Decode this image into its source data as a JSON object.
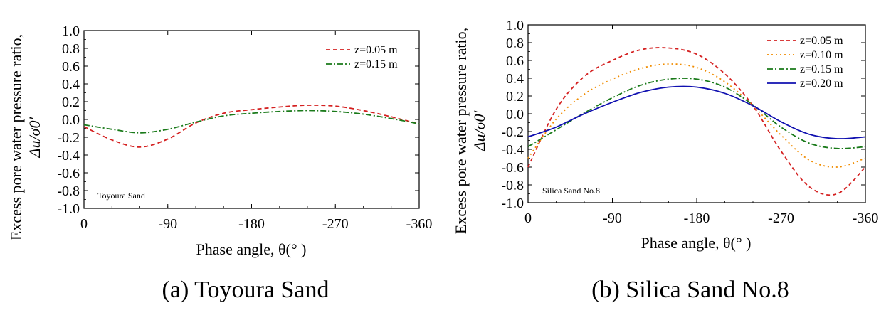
{
  "chart_data": [
    {
      "type": "line",
      "caption": "(a) Toyoura Sand",
      "inset_label": "Toyoura Sand",
      "xlabel": "Phase angle, θ(°  )",
      "ylabel_line1": "Excess pore water pressure ratio,",
      "ylabel_line2": "Δu/σ0′",
      "xlim": [
        0,
        -360
      ],
      "ylim": [
        -1.0,
        1.0
      ],
      "x_ticks": [
        "0",
        "-90",
        "-180",
        "-270",
        "-360"
      ],
      "y_ticks": [
        "1.0",
        "0.8",
        "0.6",
        "0.4",
        "0.2",
        "0.0",
        "-0.2",
        "-0.4",
        "-0.6",
        "-0.8",
        "-1.0"
      ],
      "legend_position": "top-right",
      "grid": false,
      "x": [
        0,
        -30,
        -60,
        -90,
        -120,
        -150,
        -180,
        -210,
        -240,
        -270,
        -300,
        -330,
        -360
      ],
      "series": [
        {
          "name": "z=0.05 m",
          "color": "#d42020",
          "dash": "6,4",
          "values": [
            -0.08,
            -0.23,
            -0.31,
            -0.22,
            -0.04,
            0.07,
            0.11,
            0.14,
            0.16,
            0.15,
            0.1,
            0.03,
            -0.05
          ]
        },
        {
          "name": "z=0.15 m",
          "color": "#1a7a1a",
          "dash": "8,3,2,3",
          "values": [
            -0.06,
            -0.11,
            -0.15,
            -0.11,
            -0.03,
            0.04,
            0.07,
            0.09,
            0.1,
            0.09,
            0.06,
            0.01,
            -0.05
          ]
        }
      ]
    },
    {
      "type": "line",
      "caption": "(b) Silica Sand No.8",
      "inset_label": "Silica Sand No.8",
      "xlabel": "Phase angle, θ(°  )",
      "ylabel_line1": "Excess pore water pressure ratio,",
      "ylabel_line2": "Δu/σ0′",
      "xlim": [
        0,
        -360
      ],
      "ylim": [
        -1.0,
        1.0
      ],
      "x_ticks": [
        "0",
        "-90",
        "-180",
        "-270",
        "-360"
      ],
      "y_ticks": [
        "1.0",
        "0.8",
        "0.6",
        "0.4",
        "0.2",
        "0.0",
        "-0.2",
        "-0.4",
        "-0.6",
        "-0.8",
        "-1.0"
      ],
      "legend_position": "top-right",
      "grid": false,
      "x": [
        0,
        -30,
        -60,
        -90,
        -120,
        -150,
        -180,
        -210,
        -240,
        -270,
        -300,
        -330,
        -360
      ],
      "series": [
        {
          "name": "z=0.05 m",
          "color": "#d42020",
          "dash": "5,4",
          "values": [
            -0.6,
            0.05,
            0.42,
            0.6,
            0.72,
            0.74,
            0.67,
            0.45,
            0.09,
            -0.42,
            -0.82,
            -0.9,
            -0.6
          ]
        },
        {
          "name": "z=0.10 m",
          "color": "#f08c00",
          "dash": "2,4",
          "values": [
            -0.5,
            -0.06,
            0.22,
            0.39,
            0.51,
            0.56,
            0.52,
            0.36,
            0.09,
            -0.24,
            -0.52,
            -0.6,
            -0.5
          ]
        },
        {
          "name": "z=0.15 m",
          "color": "#1a7a1a",
          "dash": "8,3,2,3",
          "values": [
            -0.37,
            -0.18,
            0.01,
            0.18,
            0.32,
            0.39,
            0.39,
            0.3,
            0.1,
            -0.15,
            -0.33,
            -0.39,
            -0.37
          ]
        },
        {
          "name": "z=0.20 m",
          "color": "#1010b0",
          "dash": "",
          "values": [
            -0.26,
            -0.15,
            0.0,
            0.13,
            0.24,
            0.3,
            0.3,
            0.23,
            0.09,
            -0.09,
            -0.23,
            -0.28,
            -0.26
          ]
        }
      ]
    }
  ]
}
